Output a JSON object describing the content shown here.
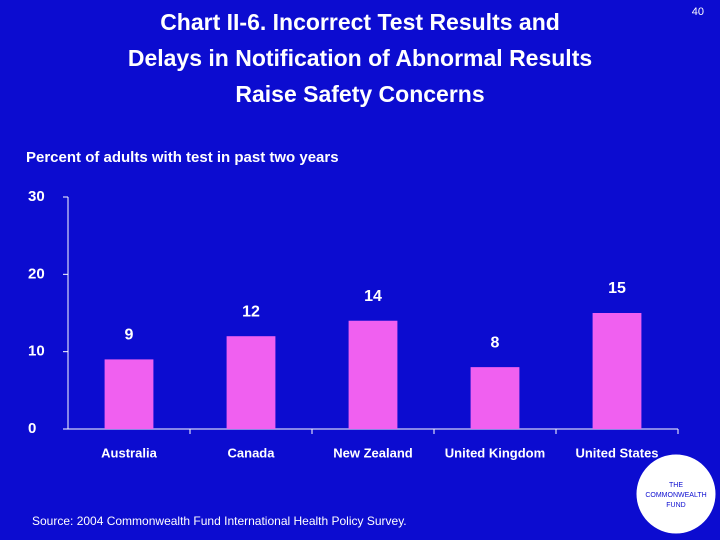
{
  "page_number": "40",
  "chart_data": {
    "type": "bar",
    "title": [
      "Chart II-6. Incorrect Test Results and",
      "Delays in Notification of Abnormal Results",
      "Raise Safety Concerns"
    ],
    "subtitle": "Percent of adults with test in past two years",
    "categories": [
      "Australia",
      "Canada",
      "New Zealand",
      "United Kingdom",
      "United States"
    ],
    "values": [
      9,
      12,
      14,
      8,
      15
    ],
    "color": "#f060f0",
    "ylim": [
      0,
      30
    ],
    "yticks": [
      0,
      10,
      20,
      30
    ],
    "grid": false
  },
  "source": "Source: 2004 Commonwealth Fund International Health Policy Survey.",
  "logo": [
    "THE",
    "COMMONWEALTH",
    "FUND"
  ]
}
